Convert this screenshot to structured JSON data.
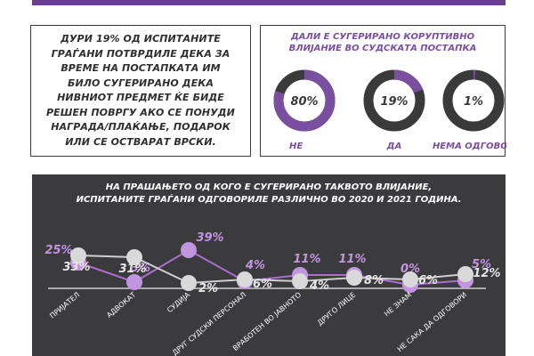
{
  "quote": {
    "text": "ДУРИ 19% ОД ИСПИТАНИТЕ ГРАЃАНИ ПОТВРДИЛЕ ДЕКА ЗА ВРЕМЕ НА ПОСТАПКАТА ИМ БИЛО СУГЕРИРАНО ДЕКА НИВНИОТ ПРЕДМЕТ ЌЕ БИДЕ РЕШЕН ПОВРГУ АКО СЕ ПОНУДИ НАГРАДА/ПЛАЌАЊЕ, ПОДАРОК ИЛИ СЕ ОСТВАРАТ ВРСКИ."
  },
  "colors": {
    "purple": "#7a4fa0",
    "dark": "#3a3a3a",
    "light_purple": "#c195e0",
    "light_gray": "#d9d9d9",
    "panel_bg": "#3b3b3d"
  },
  "chart_data": [
    {
      "type": "pie",
      "title_lines": [
        "ДАЛИ Е СУГЕРИРАНО КОРУПТИВНО",
        "ВЛИЈАНИЕ ВО СУДСКАТА ПОСТАПКА"
      ],
      "slices": [
        {
          "label": "НЕ",
          "value": 80,
          "value_label": "80%"
        },
        {
          "label": "ДА",
          "value": 19,
          "value_label": "19%"
        },
        {
          "label": "НЕМА ОДГОВОР",
          "value": 1,
          "value_label": "1%"
        }
      ]
    },
    {
      "type": "line",
      "title_lines": [
        "НА ПРАШАЊЕТО ОД КОГО Е СУГЕРИРАНО ТАКВОТО ВЛИЈАНИЕ,",
        "ИСПИТАНИТЕ ГРАЃАНИ ОДГОВОРИЛЕ РАЗЛИЧНО ВО 2020 И 2021 ГОДИНА."
      ],
      "categories": [
        "ПРИЈАТЕЛ",
        "АДВОКАТ",
        "СУДИЈА",
        "ДРУГ СУДСКИ ПЕРСОНАЛ",
        "ВРАБОТЕН ВО ЈАВНОТО",
        "ДРУГО ЛИЦЕ",
        "НЕ ЗНАМ",
        "НЕ САКА ДА ОДГОВОРИ"
      ],
      "series": [
        {
          "values": [
            25,
            3,
            39,
            4,
            11,
            11,
            0,
            5
          ],
          "value_labels": [
            "25%",
            "3%",
            "39%",
            "4%",
            "11%",
            "11%",
            "0%",
            "5%"
          ]
        },
        {
          "values": [
            33,
            31,
            2,
            6,
            4,
            8,
            6,
            12
          ],
          "value_labels": [
            "33%",
            "31%",
            "2%",
            "6%",
            "4%",
            "8%",
            "6%",
            "12%"
          ]
        }
      ]
    }
  ]
}
